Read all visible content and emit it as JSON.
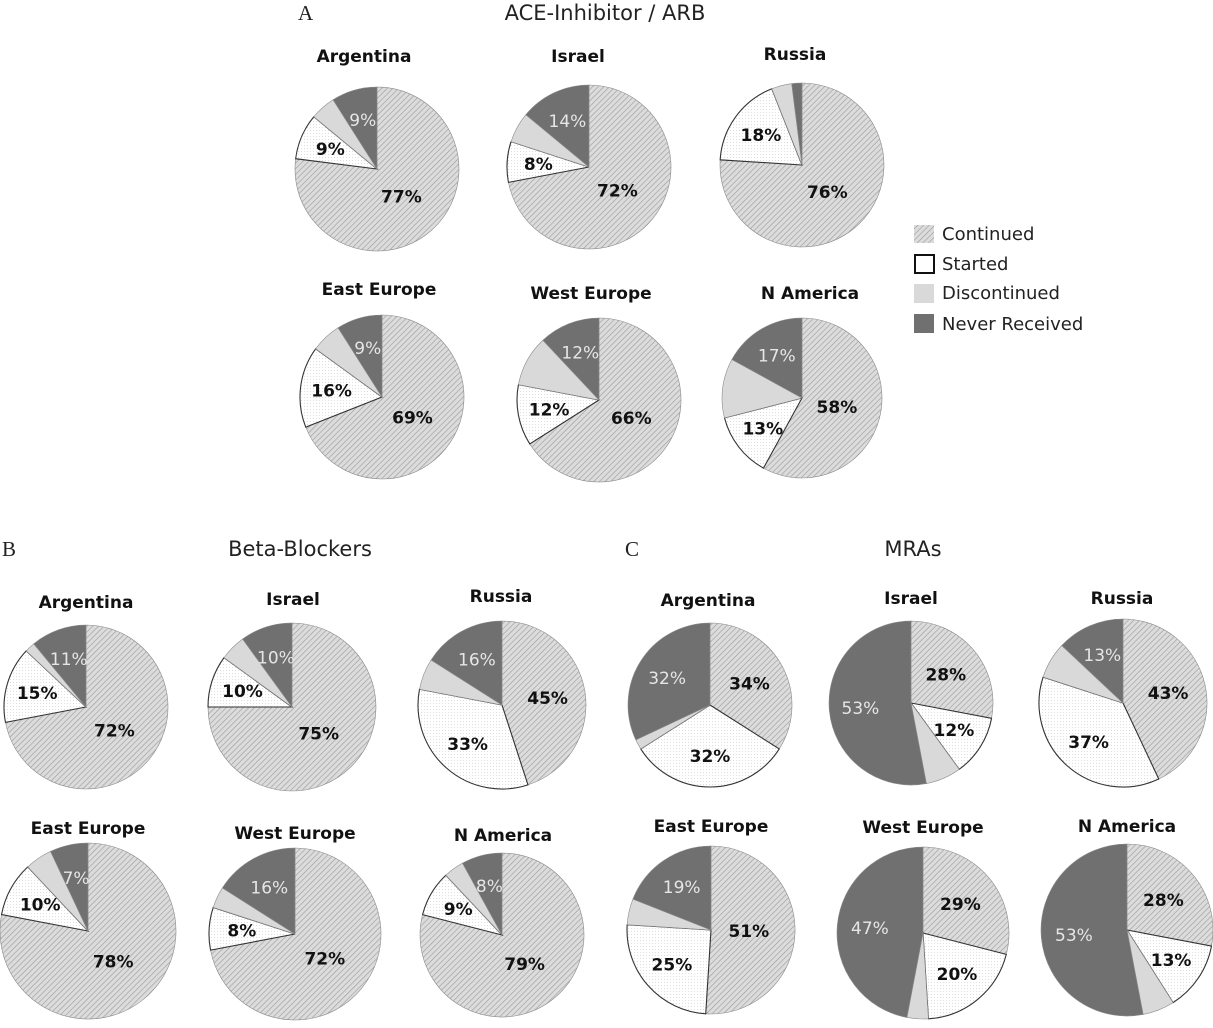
{
  "legend": {
    "items": [
      {
        "label": "Continued",
        "key": "continued"
      },
      {
        "label": "Started",
        "key": "started"
      },
      {
        "label": "Discontinued",
        "key": "discontinued"
      },
      {
        "label": "Never Received",
        "key": "never"
      }
    ]
  },
  "colors": {
    "continued": "#d0d0d0",
    "started": "#ffffff",
    "discontinued": "#d9d9d9",
    "never": "#707070",
    "stroke": "#555555"
  },
  "chart_data": [
    {
      "type": "pie",
      "panel": "A",
      "title": "ACE-Inhibitor / ARB",
      "category_order": [
        "Continued",
        "Started",
        "Discontinued",
        "Never Received"
      ],
      "charts": [
        {
          "region": "Argentina",
          "values": [
            77,
            9,
            5,
            9
          ],
          "labels": [
            "77%",
            "9%",
            "",
            "9%"
          ]
        },
        {
          "region": "Israel",
          "values": [
            72,
            8,
            6,
            14
          ],
          "labels": [
            "72%",
            "8%",
            "",
            "14%"
          ]
        },
        {
          "region": "Russia",
          "values": [
            76,
            18,
            4,
            2
          ],
          "labels": [
            "76%",
            "18%",
            "",
            ""
          ]
        },
        {
          "region": "East Europe",
          "values": [
            69,
            16,
            6,
            9
          ],
          "labels": [
            "69%",
            "16%",
            "",
            "9%"
          ]
        },
        {
          "region": "West Europe",
          "values": [
            66,
            12,
            10,
            12
          ],
          "labels": [
            "66%",
            "12%",
            "",
            "12%"
          ]
        },
        {
          "region": "N America",
          "values": [
            58,
            13,
            12,
            17
          ],
          "labels": [
            "58%",
            "13%",
            "",
            "17%"
          ]
        }
      ]
    },
    {
      "type": "pie",
      "panel": "B",
      "title": "Beta-Blockers",
      "category_order": [
        "Continued",
        "Started",
        "Discontinued",
        "Never Received"
      ],
      "charts": [
        {
          "region": "Argentina",
          "values": [
            72,
            15,
            2,
            11
          ],
          "labels": [
            "72%",
            "15%",
            "",
            "11%"
          ]
        },
        {
          "region": "Israel",
          "values": [
            75,
            10,
            5,
            10
          ],
          "labels": [
            "75%",
            "10%",
            "",
            "10%"
          ]
        },
        {
          "region": "Russia",
          "values": [
            45,
            33,
            6,
            16
          ],
          "labels": [
            "45%",
            "33%",
            "",
            "16%"
          ]
        },
        {
          "region": "East Europe",
          "values": [
            78,
            10,
            5,
            7
          ],
          "labels": [
            "78%",
            "10%",
            "",
            "7%"
          ]
        },
        {
          "region": "West Europe",
          "values": [
            72,
            8,
            4,
            16
          ],
          "labels": [
            "72%",
            "8%",
            "",
            "16%"
          ]
        },
        {
          "region": "N America",
          "values": [
            79,
            9,
            4,
            8
          ],
          "labels": [
            "79%",
            "9%",
            "",
            "8%"
          ]
        }
      ]
    },
    {
      "type": "pie",
      "panel": "C",
      "title": "MRAs",
      "category_order": [
        "Continued",
        "Started",
        "Discontinued",
        "Never Received"
      ],
      "charts": [
        {
          "region": "Argentina",
          "values": [
            34,
            32,
            2,
            32
          ],
          "labels": [
            "34%",
            "32%",
            "",
            "32%"
          ]
        },
        {
          "region": "Israel",
          "values": [
            28,
            12,
            7,
            53
          ],
          "labels": [
            "28%",
            "12%",
            "",
            "53%"
          ]
        },
        {
          "region": "Russia",
          "values": [
            43,
            37,
            7,
            13
          ],
          "labels": [
            "43%",
            "37%",
            "",
            "13%"
          ]
        },
        {
          "region": "East Europe",
          "values": [
            51,
            25,
            5,
            19
          ],
          "labels": [
            "51%",
            "25%",
            "",
            "19%"
          ]
        },
        {
          "region": "West Europe",
          "values": [
            29,
            20,
            4,
            47
          ],
          "labels": [
            "29%",
            "20%",
            "",
            "47%"
          ]
        },
        {
          "region": "N America",
          "values": [
            28,
            13,
            6,
            53
          ],
          "labels": [
            "28%",
            "13%",
            "",
            "53%"
          ]
        }
      ]
    }
  ]
}
